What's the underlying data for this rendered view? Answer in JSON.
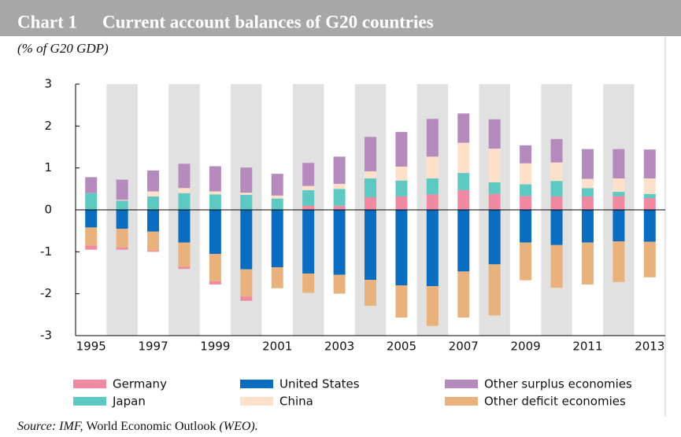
{
  "chart_data": {
    "type": "stacked_bar",
    "title_label": "Chart 1",
    "title": "Current account balances of G20 countries",
    "subtitle": "(% of G20 GDP)",
    "categories": [
      "1995",
      null,
      "1997",
      null,
      "1999",
      null,
      "2001",
      null,
      "2003",
      null,
      "2005",
      null,
      "2007",
      null,
      "2009",
      null,
      "2011",
      null,
      "2013"
    ],
    "series": [
      {
        "name": "Germany",
        "color": "#f08aa2",
        "values": [
          -0.1,
          -0.05,
          -0.03,
          -0.05,
          -0.08,
          -0.1,
          0.0,
          0.1,
          0.1,
          0.3,
          0.32,
          0.37,
          0.47,
          0.38,
          0.33,
          0.32,
          0.32,
          0.33,
          0.28
        ]
      },
      {
        "name": "Japan",
        "color": "#5ec8c2",
        "values": [
          0.4,
          0.22,
          0.32,
          0.4,
          0.37,
          0.36,
          0.27,
          0.37,
          0.4,
          0.45,
          0.38,
          0.38,
          0.41,
          0.28,
          0.28,
          0.37,
          0.2,
          0.1,
          0.1
        ]
      },
      {
        "name": "United States",
        "color": "#0b6dbf",
        "values": [
          -0.42,
          -0.45,
          -0.52,
          -0.78,
          -1.05,
          -1.42,
          -1.37,
          -1.52,
          -1.55,
          -1.67,
          -1.8,
          -1.82,
          -1.47,
          -1.3,
          -0.78,
          -0.84,
          -0.78,
          -0.75,
          -0.76
        ]
      },
      {
        "name": "China",
        "color": "#fde1cb",
        "values": [
          0.0,
          0.02,
          0.12,
          0.12,
          0.07,
          0.05,
          0.07,
          0.1,
          0.12,
          0.17,
          0.33,
          0.52,
          0.72,
          0.8,
          0.5,
          0.44,
          0.22,
          0.32,
          0.37
        ]
      },
      {
        "name": "Other surplus economies",
        "color": "#b58bbd",
        "values": [
          0.38,
          0.48,
          0.5,
          0.58,
          0.6,
          0.6,
          0.52,
          0.55,
          0.65,
          0.82,
          0.83,
          0.9,
          0.7,
          0.7,
          0.43,
          0.56,
          0.71,
          0.7,
          0.69
        ]
      },
      {
        "name": "Other deficit economies",
        "color": "#e9b27c",
        "values": [
          -0.43,
          -0.45,
          -0.45,
          -0.58,
          -0.65,
          -0.65,
          -0.5,
          -0.46,
          -0.45,
          -0.62,
          -0.77,
          -0.95,
          -1.1,
          -1.22,
          -0.9,
          -1.02,
          -1.0,
          -0.97,
          -0.85
        ]
      }
    ],
    "ylim": [
      -3,
      3
    ],
    "yticks": [
      -3,
      -2,
      -1,
      0,
      1,
      2,
      3
    ],
    "source": [
      "Source: IMF, ",
      "World Economic Outlook",
      " (WEO)."
    ]
  }
}
